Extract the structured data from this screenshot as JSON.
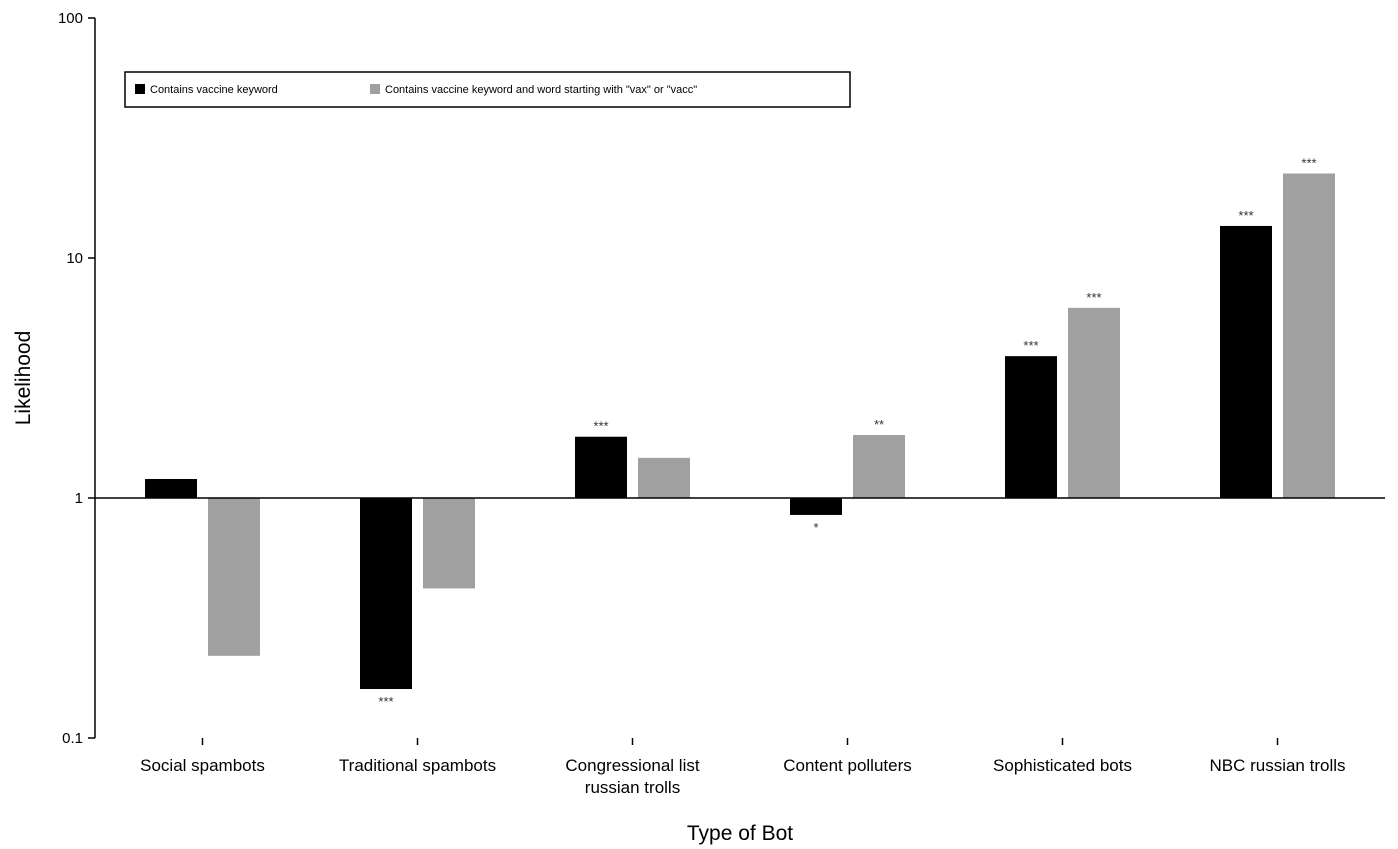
{
  "chart_data": {
    "type": "bar",
    "xlabel": "Type of Bot",
    "ylabel": "Likelihood",
    "yscale": "log",
    "ylim": [
      0.1,
      100
    ],
    "yticks": [
      0.1,
      1,
      10,
      100
    ],
    "ytick_labels": [
      "0.1",
      "1",
      "10",
      "100"
    ],
    "baseline": 1,
    "categories": [
      [
        "Social spambots"
      ],
      [
        "Traditional spambots"
      ],
      [
        "Congressional list",
        "russian trolls"
      ],
      [
        "Content polluters"
      ],
      [
        "Sophisticated bots"
      ],
      [
        "NBC russian trolls"
      ]
    ],
    "series": [
      {
        "name": "Contains vaccine keyword",
        "color": "#000000",
        "values": [
          1.2,
          0.16,
          1.8,
          0.85,
          3.9,
          13.6
        ],
        "significance": [
          "",
          "***",
          "***",
          "*",
          "***",
          "***"
        ]
      },
      {
        "name": "Contains vaccine keyword and word starting with \"vax\" or \"vacc\"",
        "color": "#a0a0a0",
        "values": [
          0.22,
          0.42,
          1.47,
          1.83,
          6.2,
          22.5
        ],
        "significance": [
          "",
          "",
          "",
          "**",
          "***",
          "***"
        ]
      }
    ],
    "legend_position": "top-left",
    "grid": false
  }
}
